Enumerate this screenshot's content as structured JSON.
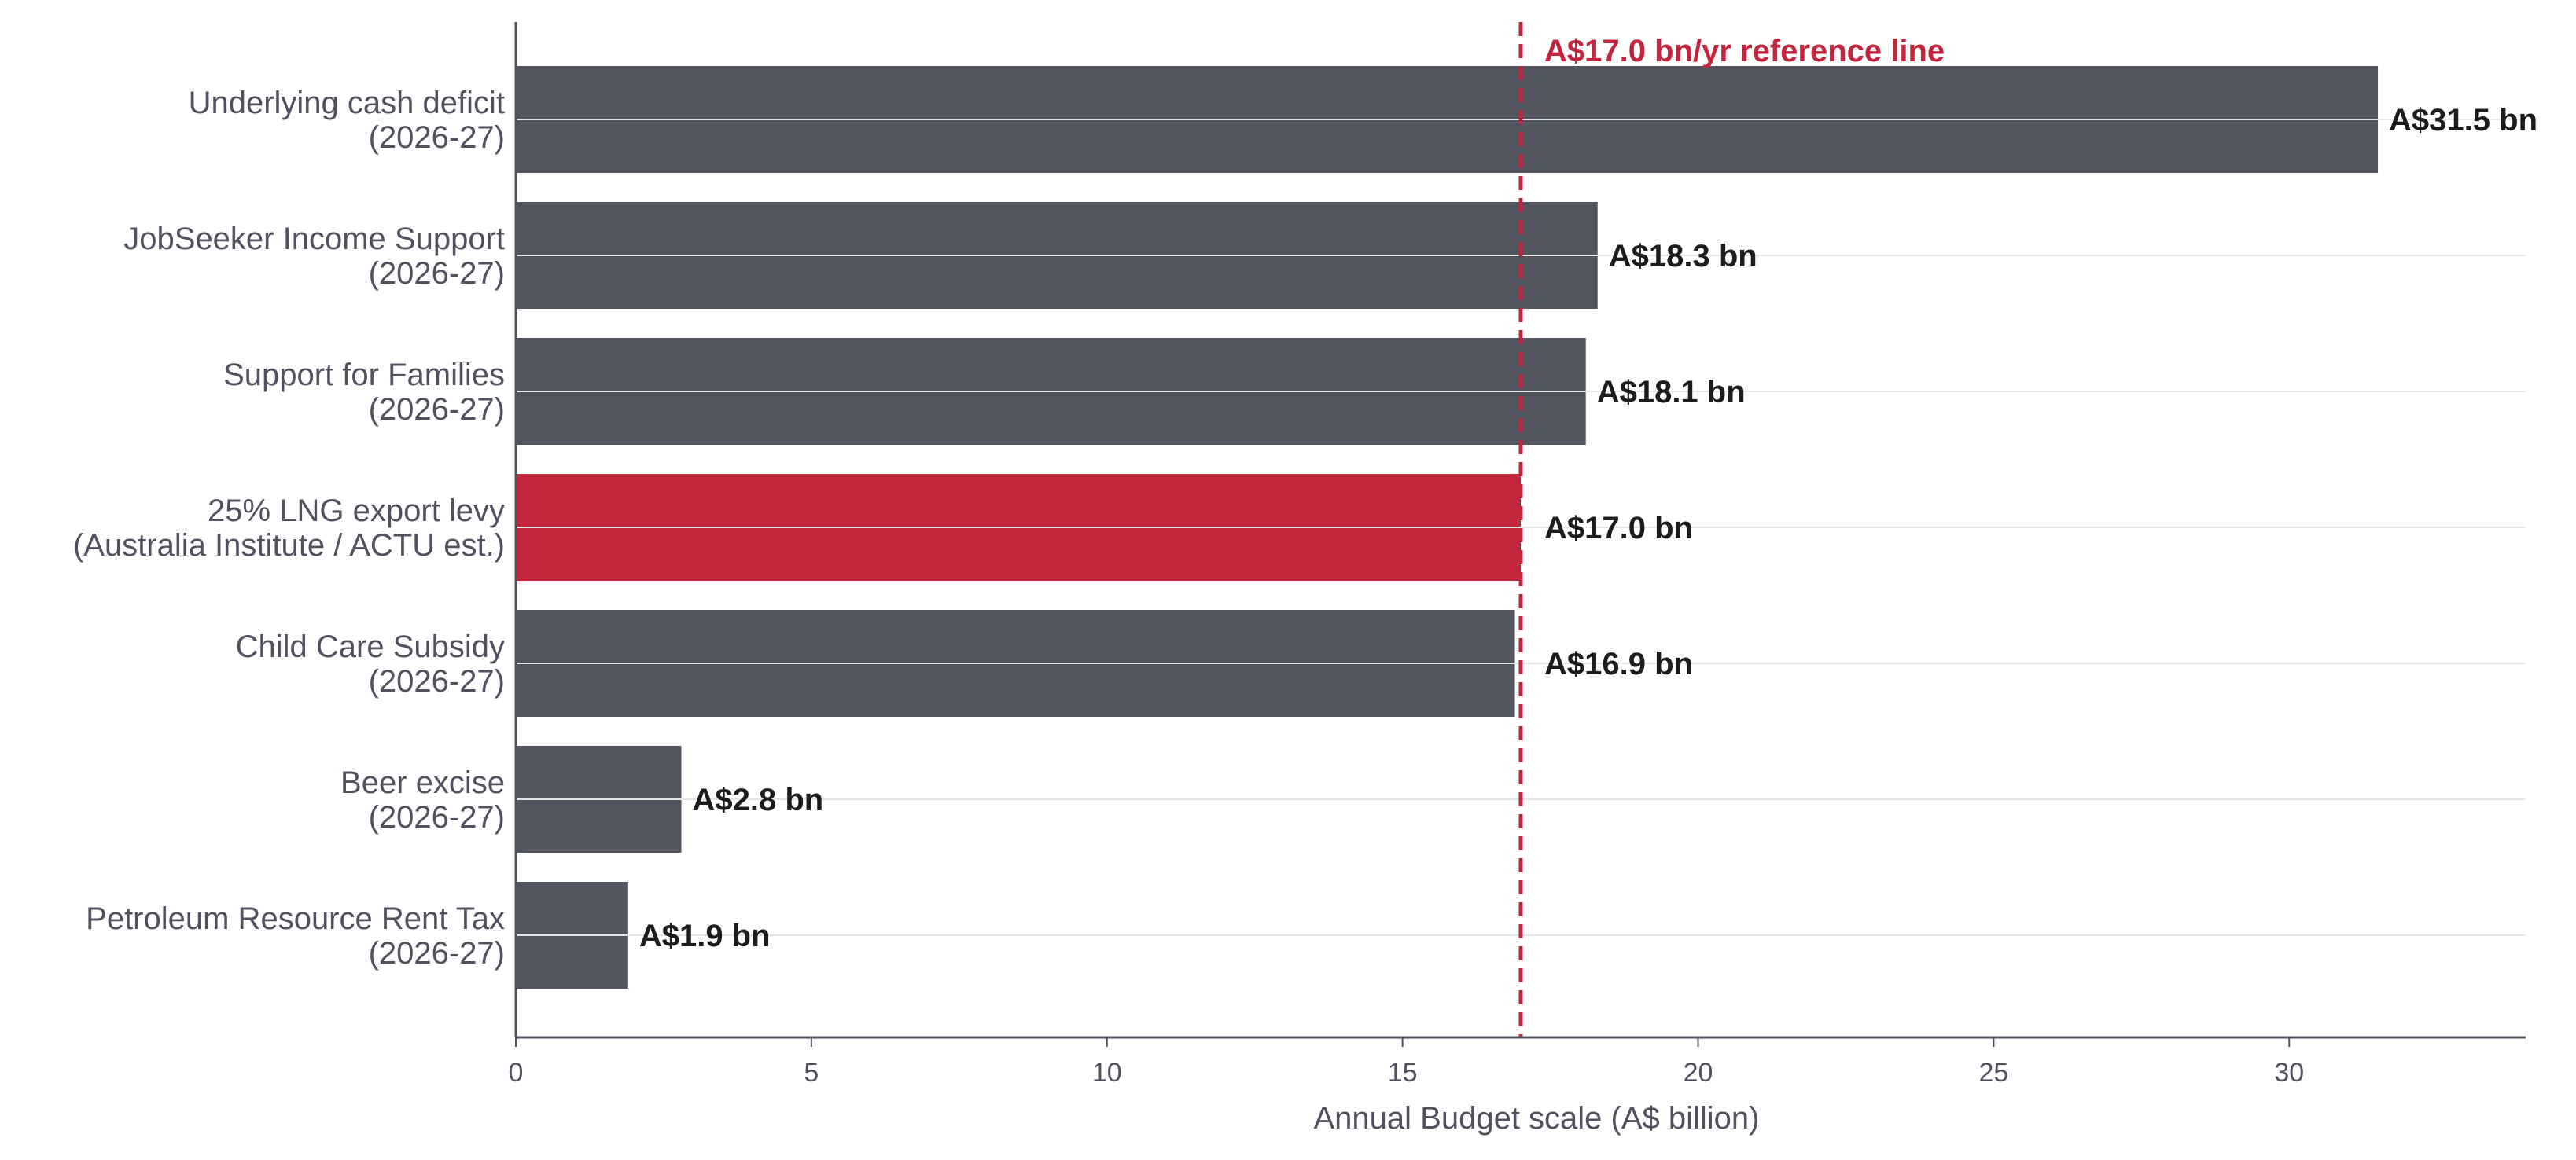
{
  "chart_data": {
    "type": "bar",
    "orientation": "horizontal",
    "categories": [
      [
        "Underlying cash deficit",
        "(2026-27)"
      ],
      [
        "JobSeeker Income Support",
        "(2026-27)"
      ],
      [
        "Support for Families",
        "(2026-27)"
      ],
      [
        "25% LNG export levy",
        "(Australia Institute / ACTU est.)"
      ],
      [
        "Child Care Subsidy",
        "(2026-27)"
      ],
      [
        "Beer excise",
        "(2026-27)"
      ],
      [
        "Petroleum Resource Rent Tax",
        "(2026-27)"
      ]
    ],
    "values": [
      31.5,
      18.3,
      18.1,
      17.0,
      16.9,
      2.8,
      1.9
    ],
    "value_labels": [
      "A$31.5 bn",
      "A$18.3 bn",
      "A$18.1 bn",
      "A$17.0 bn",
      "A$16.9 bn",
      "A$2.8 bn",
      "A$1.9 bn"
    ],
    "highlight_index": 3,
    "colors": {
      "bar": "#52545f",
      "highlight": "#c3253c",
      "reference": "#c3253c",
      "grid": "#e6e6e6",
      "axis": "#50525f"
    },
    "xlabel": "Annual Budget scale (A$ billion)",
    "ylabel": "",
    "xlim": [
      0,
      34
    ],
    "xticks": [
      0,
      5,
      10,
      15,
      20,
      25,
      30
    ],
    "reference_line": {
      "value": 17.0,
      "label": "A$17.0 bn/yr reference line",
      "style": "dashed"
    },
    "grid": "horizontal",
    "legend": "none"
  }
}
